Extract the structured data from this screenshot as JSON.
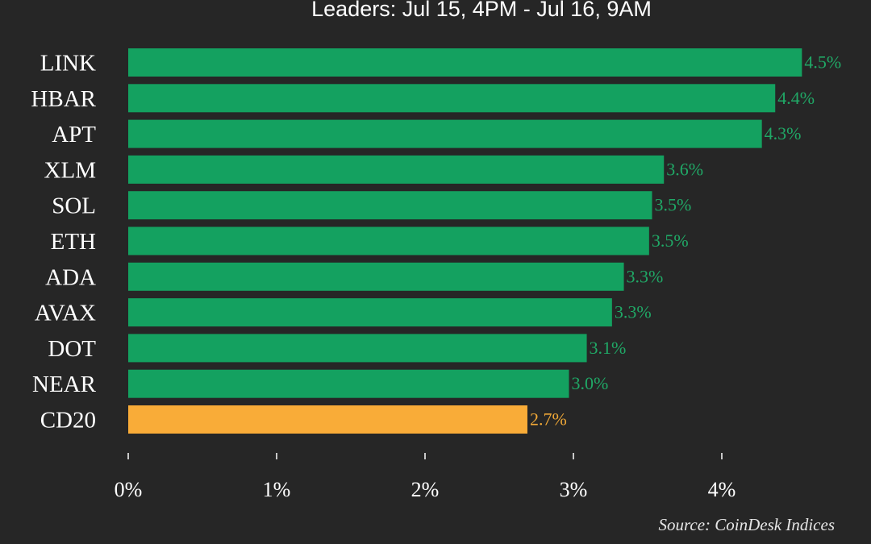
{
  "chart_data": {
    "type": "bar",
    "orientation": "horizontal",
    "title": "Leaders: Jul 15, 4PM - Jul 16, 9AM",
    "categories": [
      "LINK",
      "HBAR",
      "APT",
      "XLM",
      "SOL",
      "ETH",
      "ADA",
      "AVAX",
      "DOT",
      "NEAR",
      "CD20"
    ],
    "values": [
      4.54,
      4.36,
      4.27,
      3.61,
      3.53,
      3.51,
      3.34,
      3.26,
      3.09,
      2.97,
      2.69
    ],
    "value_labels": [
      "4.5%",
      "4.4%",
      "4.3%",
      "3.6%",
      "3.5%",
      "3.5%",
      "3.3%",
      "3.3%",
      "3.1%",
      "3.0%",
      "2.7%"
    ],
    "xlim": [
      0,
      5
    ],
    "xticks": [
      0,
      1,
      2,
      3,
      4
    ],
    "xtick_labels": [
      "0%",
      "1%",
      "2%",
      "3%",
      "4%"
    ],
    "grid": false,
    "source": "Source: CoinDesk Indices",
    "colors": {
      "background": "#262626",
      "positive": "#14a160",
      "index": "#f9ac38",
      "positive_label": "#20a866",
      "index_label": "#f0a837",
      "text": "#ffffff"
    },
    "index_category": "CD20"
  }
}
